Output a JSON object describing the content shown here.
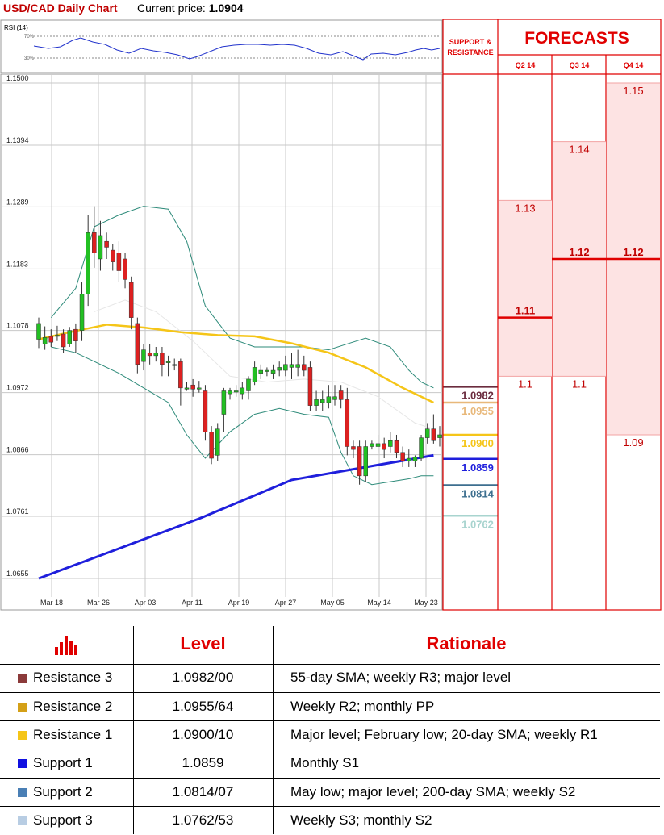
{
  "header": {
    "title": "USD/CAD Daily Chart",
    "price_label": "Current price: ",
    "price_value": "1.0904"
  },
  "rsi": {
    "label": "RSI (14)",
    "levels": [
      "70%",
      "30%"
    ]
  },
  "side_panel": {
    "support_title": [
      "SUPPORT &",
      "RESISTANCE"
    ],
    "forecasts_title": "FORECASTS",
    "quarters": [
      "Q2 14",
      "Q3 14",
      "Q4 14"
    ]
  },
  "chart_data": {
    "type": "candlestick",
    "title": "USD/CAD Daily Chart",
    "x_ticks": [
      "Mar 18",
      "Mar 26",
      "Apr 03",
      "Apr 11",
      "Apr 19",
      "Apr 27",
      "May 05",
      "May 14",
      "May 23"
    ],
    "y_ticks": [
      "1.1500",
      "1.1394",
      "1.1289",
      "1.1183",
      "1.1078",
      "1.0972",
      "1.0866",
      "1.0761",
      "1.0655"
    ],
    "ylim": [
      1.0645,
      1.152
    ],
    "grid": true,
    "candles": [
      [
        1.1063,
        1.109,
        1.1048,
        1.11
      ],
      [
        1.1055,
        1.1066,
        1.1045,
        1.1085
      ],
      [
        1.1068,
        1.1058,
        1.105,
        1.108
      ],
      [
        1.107,
        1.107,
        1.106,
        1.1086
      ],
      [
        1.1072,
        1.105,
        1.104,
        1.108
      ],
      [
        1.1055,
        1.1078,
        1.105,
        1.1084
      ],
      [
        1.108,
        1.106,
        1.104,
        1.109
      ],
      [
        1.1078,
        1.114,
        1.106,
        1.116
      ],
      [
        1.114,
        1.1245,
        1.112,
        1.1275
      ],
      [
        1.1245,
        1.121,
        1.1185,
        1.129
      ],
      [
        1.12,
        1.124,
        1.118,
        1.1265
      ],
      [
        1.123,
        1.122,
        1.12,
        1.1245
      ],
      [
        1.1215,
        1.1195,
        1.118,
        1.1225
      ],
      [
        1.121,
        1.118,
        1.116,
        1.123
      ],
      [
        1.12,
        1.1165,
        1.115,
        1.121
      ],
      [
        1.116,
        1.11,
        1.108,
        1.117
      ],
      [
        1.109,
        1.102,
        1.1005,
        1.11
      ],
      [
        1.1025,
        1.1045,
        1.101,
        1.1055
      ],
      [
        1.104,
        1.1035,
        1.102,
        1.1055
      ],
      [
        1.1035,
        1.104,
        1.1025,
        1.105
      ],
      [
        1.104,
        1.102,
        1.1,
        1.105
      ],
      [
        1.1025,
        1.1025,
        1.1,
        1.1035
      ],
      [
        1.102,
        1.102,
        1.101,
        1.103
      ],
      [
        1.1025,
        1.098,
        1.095,
        1.103
      ],
      [
        1.098,
        1.098,
        1.0975,
        1.099
      ],
      [
        1.0985,
        1.0978,
        1.0965,
        1.0995
      ],
      [
        1.0978,
        1.098,
        1.0972,
        1.0992
      ],
      [
        1.0975,
        1.0905,
        1.089,
        1.0985
      ],
      [
        1.0905,
        1.086,
        1.085,
        1.0915
      ],
      [
        1.0865,
        1.091,
        1.0855,
        1.092
      ],
      [
        1.0935,
        1.0975,
        1.0905,
        1.098
      ],
      [
        1.097,
        1.0975,
        1.096,
        1.098
      ],
      [
        1.0975,
        1.0975,
        1.0965,
        1.0985
      ],
      [
        1.097,
        1.098,
        1.096,
        1.099
      ],
      [
        1.0975,
        1.0995,
        1.096,
        1.1
      ],
      [
        1.099,
        1.1015,
        1.0985,
        1.1025
      ],
      [
        1.1005,
        1.101,
        1.0995,
        1.102
      ],
      [
        1.101,
        1.101,
        1.1,
        1.1015
      ],
      [
        1.1005,
        1.101,
        1.0995,
        1.102
      ],
      [
        1.101,
        1.1015,
        1.1,
        1.1025
      ],
      [
        1.101,
        1.102,
        1.1,
        1.1035
      ],
      [
        1.1015,
        1.102,
        1.0995,
        1.104
      ],
      [
        1.1015,
        1.102,
        1.1,
        1.1045
      ],
      [
        1.102,
        1.101,
        1.1,
        1.1035
      ],
      [
        1.1015,
        1.095,
        1.094,
        1.1025
      ],
      [
        1.095,
        1.096,
        1.094,
        1.0975
      ],
      [
        1.0955,
        1.096,
        1.094,
        1.0975
      ],
      [
        1.0955,
        1.0965,
        1.0945,
        1.0985
      ],
      [
        1.096,
        1.0965,
        1.095,
        1.0985
      ],
      [
        1.0975,
        1.096,
        1.0945,
        1.0985
      ],
      [
        1.096,
        1.088,
        1.0865,
        1.098
      ],
      [
        1.088,
        1.0875,
        1.086,
        1.089
      ],
      [
        1.088,
        1.083,
        1.0815,
        1.089
      ],
      [
        1.083,
        1.088,
        1.082,
        1.089
      ],
      [
        1.088,
        1.0885,
        1.0875,
        1.089
      ],
      [
        1.088,
        1.0885,
        1.087,
        1.09
      ],
      [
        1.0885,
        1.0875,
        1.086,
        1.0895
      ],
      [
        1.088,
        1.089,
        1.087,
        1.0905
      ],
      [
        1.089,
        1.087,
        1.086,
        1.09
      ],
      [
        1.087,
        1.0855,
        1.0845,
        1.088
      ],
      [
        1.0855,
        1.086,
        1.0845,
        1.0875
      ],
      [
        1.0855,
        1.0862,
        1.0845,
        1.0865
      ],
      [
        1.086,
        1.0895,
        1.0855,
        1.09
      ],
      [
        1.0895,
        1.091,
        1.0885,
        1.092
      ],
      [
        1.091,
        1.089,
        1.0885,
        1.0935
      ],
      [
        1.0895,
        1.09,
        1.088,
        1.0915
      ]
    ],
    "sma_200": [
      [
        1,
        1.0655
      ],
      [
        27,
        1.0757
      ],
      [
        42,
        1.0823
      ],
      [
        65,
        1.0865
      ]
    ],
    "sma_55": [
      [
        1,
        1.1063
      ],
      [
        6,
        1.1075
      ],
      [
        12,
        1.1088
      ],
      [
        18,
        1.1083
      ],
      [
        24,
        1.1075
      ],
      [
        30,
        1.107
      ],
      [
        36,
        1.1068
      ],
      [
        42,
        1.1056
      ],
      [
        48,
        1.104
      ],
      [
        54,
        1.1015
      ],
      [
        60,
        1.098
      ],
      [
        65,
        1.0955
      ]
    ],
    "sma_20": [
      [
        10,
        1.111
      ],
      [
        15,
        1.113
      ],
      [
        20,
        1.111
      ],
      [
        26,
        1.106
      ],
      [
        32,
        1.1
      ],
      [
        38,
        1.099
      ],
      [
        44,
        1.0995
      ],
      [
        50,
        1.099
      ],
      [
        56,
        1.0965
      ],
      [
        62,
        1.092
      ],
      [
        65,
        1.091
      ]
    ],
    "bb_upper": [
      [
        3,
        1.11
      ],
      [
        7,
        1.115
      ],
      [
        10,
        1.1255
      ],
      [
        14,
        1.1275
      ],
      [
        18,
        1.129
      ],
      [
        22,
        1.1285
      ],
      [
        25,
        1.123
      ],
      [
        28,
        1.112
      ],
      [
        32,
        1.1065
      ],
      [
        36,
        1.105
      ],
      [
        40,
        1.105
      ],
      [
        44,
        1.105
      ],
      [
        48,
        1.1045
      ],
      [
        51,
        1.1055
      ],
      [
        54,
        1.1065
      ],
      [
        58,
        1.105
      ],
      [
        61,
        1.101
      ],
      [
        63,
        1.099
      ],
      [
        65,
        1.098
      ]
    ],
    "bb_lower": [
      [
        3,
        1.105
      ],
      [
        7,
        1.104
      ],
      [
        10,
        1.1025
      ],
      [
        14,
        1.1005
      ],
      [
        18,
        1.098
      ],
      [
        22,
        1.0955
      ],
      [
        25,
        1.09
      ],
      [
        28,
        1.086
      ],
      [
        32,
        1.0905
      ],
      [
        36,
        1.0935
      ],
      [
        40,
        1.0945
      ],
      [
        44,
        1.0935
      ],
      [
        48,
        1.093
      ],
      [
        50,
        1.087
      ],
      [
        52,
        1.083
      ],
      [
        55,
        1.0815
      ],
      [
        58,
        1.082
      ],
      [
        61,
        1.0825
      ],
      [
        63,
        1.083
      ],
      [
        65,
        1.083
      ]
    ],
    "sr_levels": [
      {
        "value": 1.0982,
        "label": "1.0982",
        "color": "#6b2c3e"
      },
      {
        "value": 1.0955,
        "label": "1.0955",
        "color": "#e8b87a"
      },
      {
        "value": 1.09,
        "label": "1.0900",
        "color": "#f5c518"
      },
      {
        "value": 1.0859,
        "label": "1.0859",
        "color": "#1f1fdc"
      },
      {
        "value": 1.0814,
        "label": "1.0814",
        "color": "#3d6f8f"
      },
      {
        "value": 1.0762,
        "label": "1.0762",
        "color": "#a8d4cf"
      }
    ],
    "forecasts": [
      {
        "quarter": "Q2 14",
        "values": [
          {
            "v": 1.13,
            "label": "1.13",
            "bold": false
          },
          {
            "v": 1.11,
            "label": "1.11",
            "bold": true
          },
          {
            "v": 1.1,
            "label": "1.1",
            "bold": false
          }
        ]
      },
      {
        "quarter": "Q3 14",
        "values": [
          {
            "v": 1.14,
            "label": "1.14",
            "bold": false
          },
          {
            "v": 1.12,
            "label": "1.12",
            "bold": true
          },
          {
            "v": 1.1,
            "label": "1.1",
            "bold": false
          }
        ]
      },
      {
        "quarter": "Q4 14",
        "values": [
          {
            "v": 1.15,
            "label": "1.15",
            "bold": false
          },
          {
            "v": 1.12,
            "label": "1.12",
            "bold": true
          },
          {
            "v": 1.09,
            "label": "1.09",
            "bold": false
          }
        ]
      }
    ]
  },
  "table": {
    "headers": [
      "Level",
      "Rationale"
    ],
    "header_icon": "bar-chart-icon",
    "rows": [
      {
        "name": "Resistance 3",
        "level": "1.0982/00",
        "rationale": "55-day SMA; weekly R3; major level",
        "color": "#8b3a3a"
      },
      {
        "name": "Resistance 2",
        "level": "1.0955/64",
        "rationale": "Weekly R2; monthly PP",
        "color": "#d4a017"
      },
      {
        "name": "Resistance 1",
        "level": "1.0900/10",
        "rationale": "Major level; February low; 20-day SMA; weekly R1",
        "color": "#f5c518"
      },
      {
        "name": "Support 1",
        "level": "1.0859",
        "rationale": "Monthly S1",
        "color": "#1010e0"
      },
      {
        "name": "Support 2",
        "level": "1.0814/07",
        "rationale": "May low; major level; 200-day SMA; weekly S2",
        "color": "#4a7fb5"
      },
      {
        "name": "Support 3",
        "level": "1.0762/53",
        "rationale": "Weekly S3; monthly S2",
        "color": "#b8cde3"
      }
    ]
  }
}
